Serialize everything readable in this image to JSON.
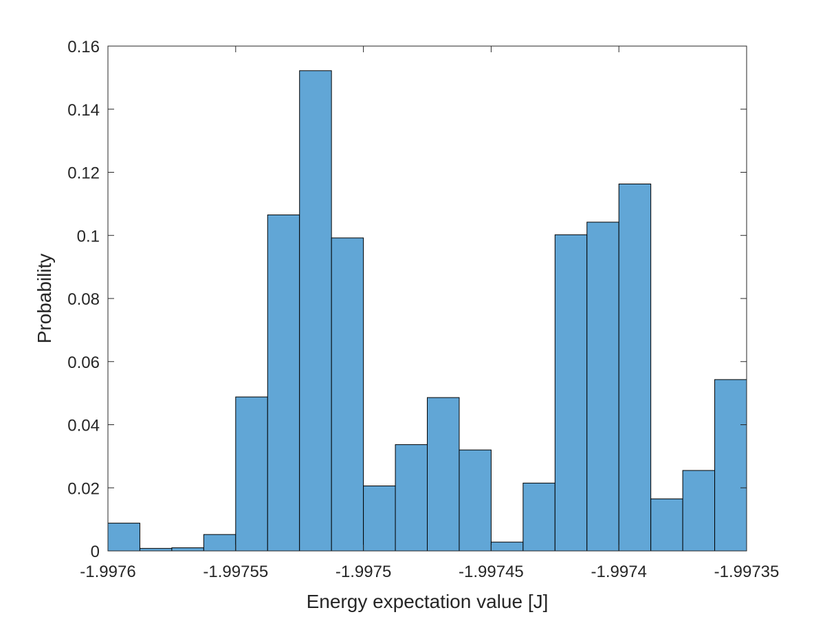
{
  "chart_data": {
    "type": "bar",
    "subtype": "histogram",
    "title": "",
    "xlabel": "Energy expectation value [J]",
    "ylabel": "Probability",
    "xlim": [
      -1.9976,
      -1.99735
    ],
    "ylim": [
      0,
      0.16
    ],
    "xticks": [
      -1.9976,
      -1.99755,
      -1.9975,
      -1.99745,
      -1.9974,
      -1.99735
    ],
    "xtick_labels": [
      "-1.9976",
      "-1.99755",
      "-1.9975",
      "-1.99745",
      "-1.9974",
      "-1.99735"
    ],
    "yticks": [
      0,
      0.02,
      0.04,
      0.06,
      0.08,
      0.1,
      0.12,
      0.14,
      0.16
    ],
    "ytick_labels": [
      "0",
      "0.02",
      "0.04",
      "0.06",
      "0.08",
      "0.1",
      "0.12",
      "0.14",
      "0.16"
    ],
    "bin_edges": [
      -1.9976,
      -1.9975875,
      -1.997575,
      -1.9975625,
      -1.99755,
      -1.9975375,
      -1.997525,
      -1.9975125,
      -1.9975,
      -1.9974875,
      -1.997475,
      -1.9974625,
      -1.99745,
      -1.9974375,
      -1.997425,
      -1.9974125,
      -1.9974,
      -1.9973875,
      -1.997375,
      -1.9973625,
      -1.99735
    ],
    "values": [
      0.0088,
      0.0008,
      0.001,
      0.0052,
      0.0488,
      0.1065,
      0.1522,
      0.0992,
      0.0206,
      0.0337,
      0.0486,
      0.032,
      0.0028,
      0.0215,
      0.1002,
      0.1042,
      0.1163,
      0.0165,
      0.0255,
      0.0543
    ],
    "grid": false,
    "box": true,
    "bar_color": "#61a6d6",
    "edge_color": "#000000",
    "axis_color": "#262626"
  }
}
